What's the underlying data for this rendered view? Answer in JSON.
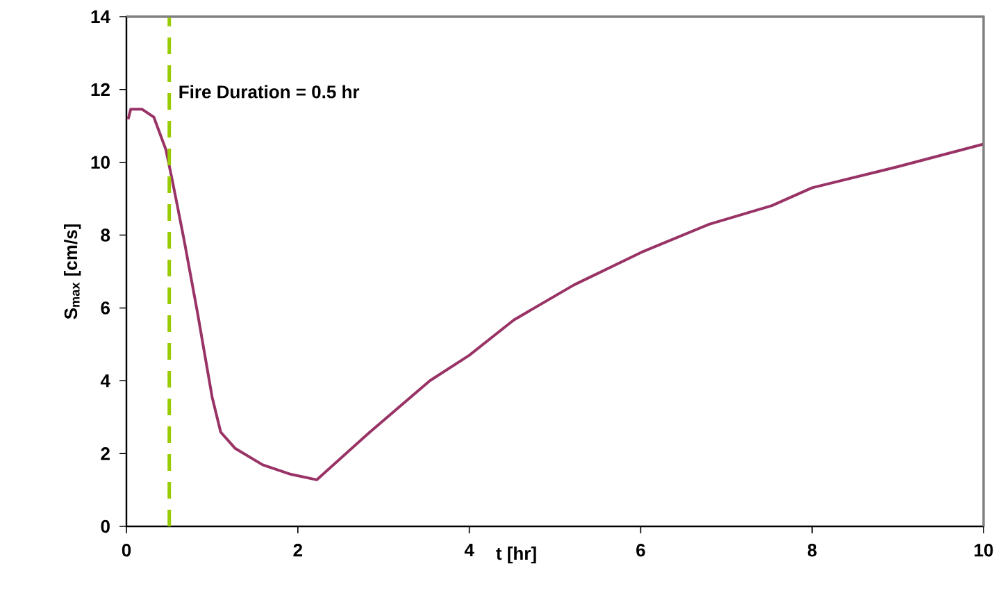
{
  "chart_data": {
    "type": "line",
    "xlabel": "t [hr]",
    "ylabel": "S$_{max}$ [cm/s]",
    "xlim": [
      0,
      10
    ],
    "ylim": [
      0,
      14
    ],
    "xticks": [
      0,
      2,
      4,
      6,
      8,
      10
    ],
    "yticks": [
      0,
      2,
      4,
      6,
      8,
      10,
      12,
      14
    ],
    "grid": false,
    "marker": "none",
    "line_style": "solid",
    "series": [
      {
        "color": "#993366",
        "x": [
          0.02,
          0.05,
          0.18,
          0.32,
          0.46,
          0.54,
          0.67,
          0.83,
          1.0,
          1.1,
          1.27,
          1.59,
          1.92,
          2.22,
          2.84,
          3.54,
          4.0,
          4.52,
          5.22,
          6.01,
          6.8,
          7.53,
          8.0,
          9.0,
          10.0
        ],
        "values": [
          11.18,
          11.46,
          11.46,
          11.24,
          10.35,
          9.45,
          7.9,
          5.86,
          3.55,
          2.59,
          2.14,
          1.69,
          1.43,
          1.28,
          2.59,
          4.0,
          4.7,
          5.67,
          6.63,
          7.53,
          8.3,
          8.81,
          9.3,
          9.88,
          10.5
        ]
      }
    ],
    "ref_lines": [
      {
        "axis": "x",
        "value": 0.5,
        "label": "Fire Duration = 0.5 hr",
        "color": "#99cc00",
        "line_style": "dashed"
      }
    ]
  }
}
